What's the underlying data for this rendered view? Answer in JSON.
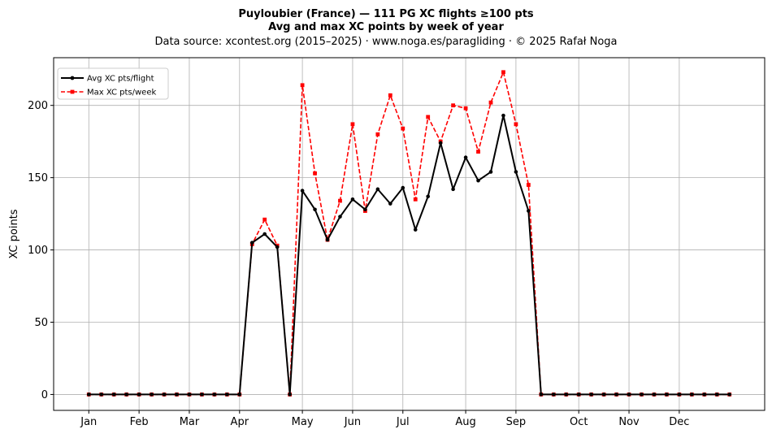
{
  "chart_data": {
    "type": "line",
    "title": "Puyloubier (France)  —  111 PG XC flights ≥100 pts",
    "subtitle": "Avg and max XC points by week of year",
    "source_line": "Data source: xcontest.org (2015–2025)  ·  www.noga.es/paragliding  ·  © 2025 Rafał Noga",
    "xlabel": "",
    "ylabel": "XC points",
    "x_unit": "week of year",
    "xlim": [
      -1.8,
      54.8
    ],
    "ylim": [
      -11,
      233
    ],
    "grid": true,
    "legend_position": "top-left",
    "x_ticks": [
      {
        "label": "Jan",
        "week": 1
      },
      {
        "label": "Feb",
        "week": 5
      },
      {
        "label": "Mar",
        "week": 9
      },
      {
        "label": "Apr",
        "week": 13
      },
      {
        "label": "May",
        "week": 18
      },
      {
        "label": "Jun",
        "week": 22
      },
      {
        "label": "Jul",
        "week": 26
      },
      {
        "label": "Aug",
        "week": 31
      },
      {
        "label": "Sep",
        "week": 35
      },
      {
        "label": "Oct",
        "week": 40
      },
      {
        "label": "Nov",
        "week": 44
      },
      {
        "label": "Dec",
        "week": 48
      }
    ],
    "y_ticks": [
      0,
      50,
      100,
      150,
      200
    ],
    "x": [
      1,
      2,
      3,
      4,
      5,
      6,
      7,
      8,
      9,
      10,
      11,
      12,
      13,
      14,
      15,
      16,
      17,
      18,
      19,
      20,
      21,
      22,
      23,
      24,
      25,
      26,
      27,
      28,
      29,
      30,
      31,
      32,
      33,
      34,
      35,
      36,
      37,
      38,
      39,
      40,
      41,
      42,
      43,
      44,
      45,
      46,
      47,
      48,
      49,
      50,
      51,
      52
    ],
    "series": [
      {
        "name": "Avg XC pts/flight",
        "color": "#000000",
        "line_style": "solid",
        "marker": "circle",
        "values": [
          0,
          0,
          0,
          0,
          0,
          0,
          0,
          0,
          0,
          0,
          0,
          0,
          0,
          105,
          111,
          102,
          0,
          141,
          128,
          107,
          123,
          135,
          128,
          142,
          132,
          143,
          114,
          137,
          174,
          142,
          164,
          148,
          154,
          193,
          154,
          127,
          0,
          0,
          0,
          0,
          0,
          0,
          0,
          0,
          0,
          0,
          0,
          0,
          0,
          0,
          0,
          0
        ]
      },
      {
        "name": "Max XC pts/week",
        "color": "#ff0000",
        "line_style": "dashed",
        "marker": "square",
        "values": [
          0,
          0,
          0,
          0,
          0,
          0,
          0,
          0,
          0,
          0,
          0,
          0,
          0,
          104,
          121,
          103,
          0,
          214,
          153,
          107,
          134,
          187,
          127,
          180,
          207,
          184,
          135,
          192,
          175,
          200,
          198,
          168,
          202,
          223,
          187,
          145,
          0,
          0,
          0,
          0,
          0,
          0,
          0,
          0,
          0,
          0,
          0,
          0,
          0,
          0,
          0,
          0
        ]
      }
    ]
  }
}
